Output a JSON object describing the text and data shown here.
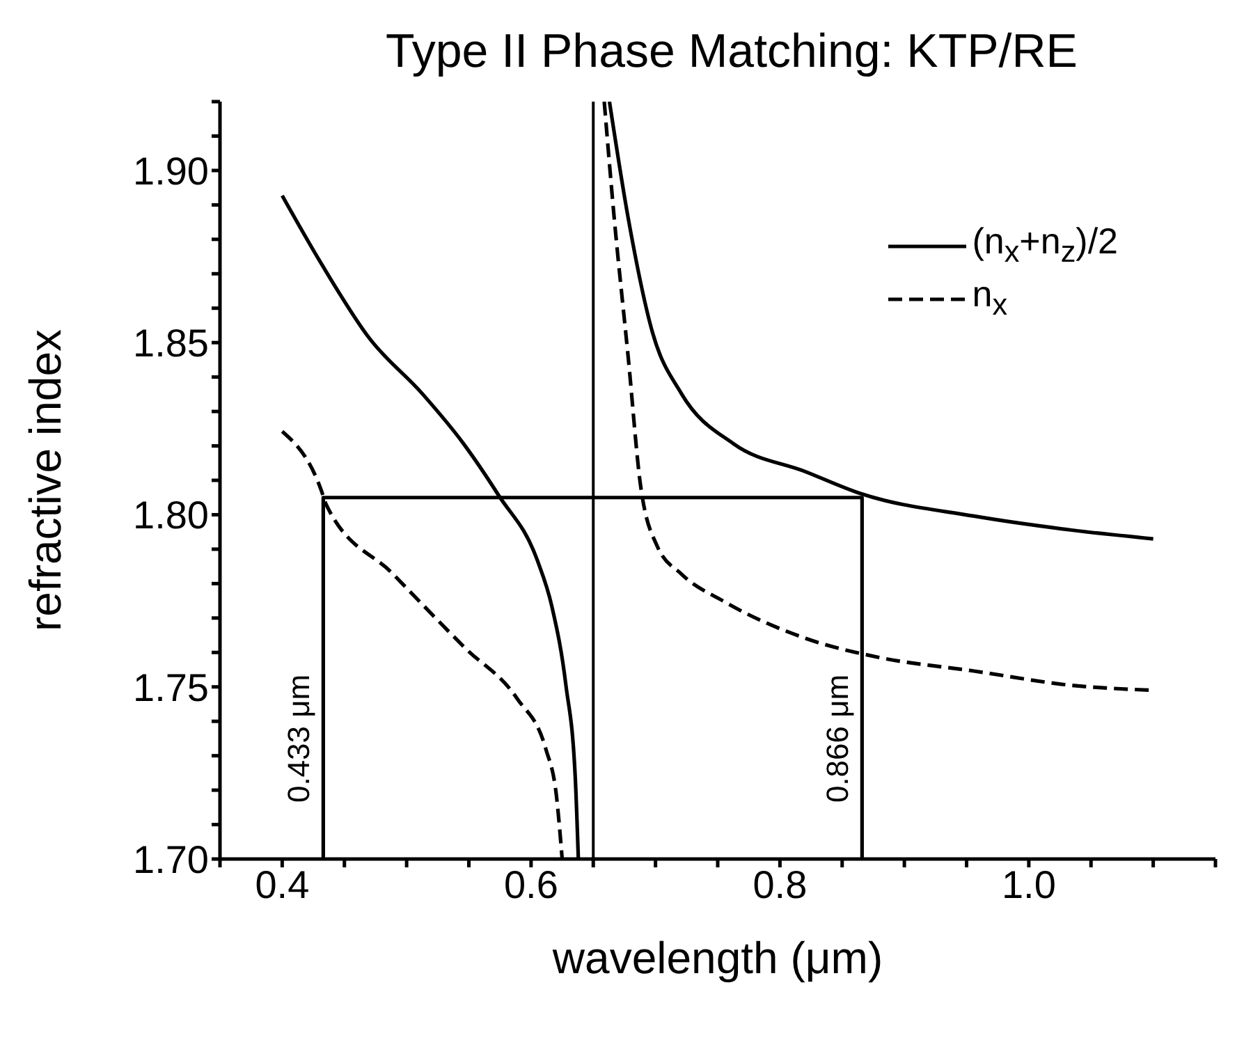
{
  "chart_data": {
    "type": "line",
    "title": "Type II Phase Matching: KTP/RE",
    "xlabel": "wavelength (μm)",
    "ylabel": "refractive index",
    "xlim": [
      0.35,
      1.15
    ],
    "xticks": [
      {
        "value": 0.35,
        "label": null
      },
      {
        "value": 0.4,
        "label": "0.4"
      },
      {
        "value": 0.45,
        "label": null
      },
      {
        "value": 0.5,
        "label": null
      },
      {
        "value": 0.55,
        "label": null
      },
      {
        "value": 0.6,
        "label": "0.6"
      },
      {
        "value": 0.65,
        "label": null
      },
      {
        "value": 0.7,
        "label": null
      },
      {
        "value": 0.75,
        "label": null
      },
      {
        "value": 0.8,
        "label": "0.8"
      },
      {
        "value": 0.85,
        "label": null
      },
      {
        "value": 0.9,
        "label": null
      },
      {
        "value": 0.95,
        "label": null
      },
      {
        "value": 1.0,
        "label": "1.0"
      },
      {
        "value": 1.05,
        "label": null
      },
      {
        "value": 1.1,
        "label": null
      },
      {
        "value": 1.15,
        "label": null
      }
    ],
    "ylim": [
      1.7,
      1.92
    ],
    "yticks": [
      {
        "value": 1.7,
        "label": "1.70"
      },
      {
        "value": 1.71,
        "label": null
      },
      {
        "value": 1.72,
        "label": null
      },
      {
        "value": 1.73,
        "label": null
      },
      {
        "value": 1.74,
        "label": null
      },
      {
        "value": 1.75,
        "label": "1.75"
      },
      {
        "value": 1.76,
        "label": null
      },
      {
        "value": 1.77,
        "label": null
      },
      {
        "value": 1.78,
        "label": null
      },
      {
        "value": 1.79,
        "label": null
      },
      {
        "value": 1.8,
        "label": "1.80"
      },
      {
        "value": 1.81,
        "label": null
      },
      {
        "value": 1.82,
        "label": null
      },
      {
        "value": 1.83,
        "label": null
      },
      {
        "value": 1.84,
        "label": null
      },
      {
        "value": 1.85,
        "label": "1.85"
      },
      {
        "value": 1.86,
        "label": null
      },
      {
        "value": 1.87,
        "label": null
      },
      {
        "value": 1.88,
        "label": null
      },
      {
        "value": 1.89,
        "label": null
      },
      {
        "value": 1.9,
        "label": "1.90"
      },
      {
        "value": 1.91,
        "label": null
      },
      {
        "value": 1.92,
        "label": null
      }
    ],
    "legend": "top right",
    "marker": "none",
    "grid": false,
    "series": [
      {
        "name": "(n$_{x}$+n$_{z}$)/2",
        "color": "#000000",
        "line_style": "solid",
        "x": [
          0.4,
          0.4315,
          0.47,
          0.5125,
          0.545,
          0.574,
          0.605,
          0.6167,
          0.628,
          0.6355,
          0.638,
          0.65,
          0.663,
          0.678,
          0.6977,
          0.7208,
          0.7628,
          0.8206,
          0.8635,
          0.956,
          1.0333,
          1.1
        ],
        "values": [
          1.8927,
          1.8729,
          1.8513,
          1.8352,
          1.821,
          1.8056,
          1.7868,
          1.7734,
          1.7505,
          1.7238,
          1.7,
          null,
          1.92,
          1.8863,
          1.8528,
          1.8352,
          1.8206,
          1.8125,
          1.8063,
          1.7996,
          1.7956,
          1.793
        ]
      },
      {
        "name": "n$_{x}$",
        "color": "#000000",
        "line_style": "dashed",
        "x": [
          0.4,
          0.4315,
          0.4353,
          0.489,
          0.547,
          0.589,
          0.612,
          0.6205,
          0.625,
          0.64,
          0.6588,
          0.6668,
          0.678,
          0.688,
          0.7015,
          0.7208,
          0.7556,
          0.8206,
          0.879,
          0.956,
          1.0333,
          1.1
        ],
        "values": [
          1.8242,
          1.807,
          1.803,
          1.7828,
          1.7613,
          1.7465,
          1.7318,
          1.718,
          1.7,
          null,
          1.92,
          1.8863,
          1.846,
          1.8085,
          1.7908,
          1.7828,
          1.7747,
          1.7641,
          1.7586,
          1.7546,
          1.7505,
          1.749
        ]
      },
      {
        "color": "#000000",
        "line_style": "solid",
        "x": [
          0.433,
          0.433,
          0.866,
          0.866
        ],
        "values": [
          1.7,
          1.805,
          1.805,
          1.7
        ]
      }
    ],
    "ref_lines": [
      {
        "axis": "x",
        "value": 0.65,
        "label": null,
        "color": "#000000"
      }
    ],
    "annotations": [
      {
        "text": "0.433 μm",
        "x": 0.433,
        "y": 1.735
      },
      {
        "text": "0.866 μm",
        "x": 0.866,
        "y": 1.735
      }
    ]
  }
}
